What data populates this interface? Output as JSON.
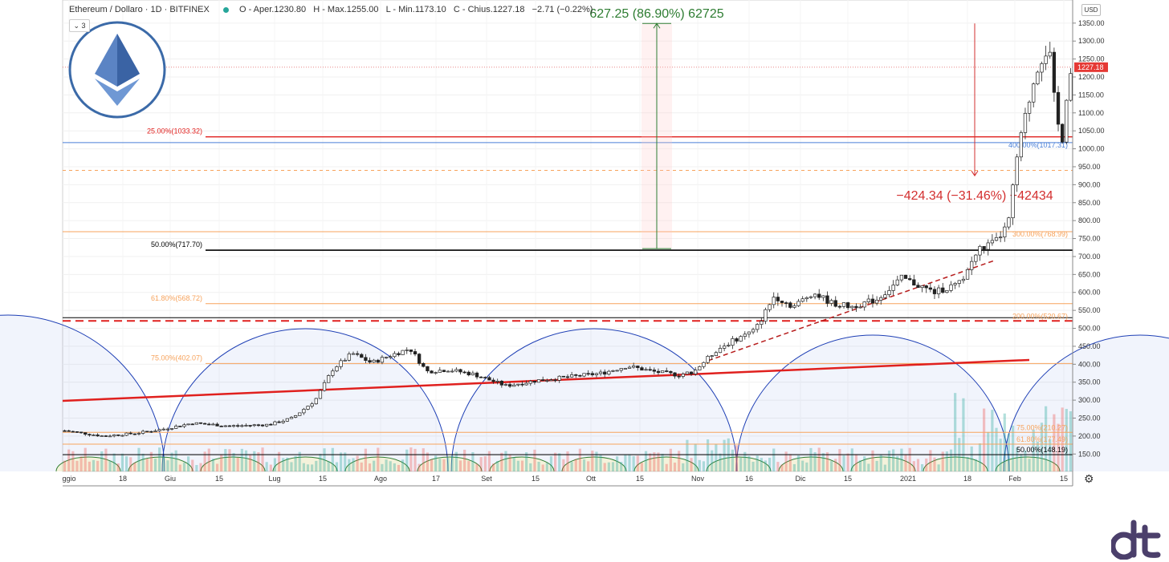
{
  "header": {
    "symbol": "Ethereum / Dollaro · 1D · BITFINEX",
    "open": "O - Aper.1230.80",
    "high": "H - Max.1255.00",
    "low": "L - Min.1173.10",
    "close": "C - Chius.1227.18",
    "change": "−2.71 (−0.22%)",
    "badge": "3"
  },
  "currency": "USD",
  "colors": {
    "up": "#26a69a",
    "down": "#ef5350",
    "fib": "#f7a35c",
    "accent_red": "#e0201e",
    "measure_up": "#2e7d32",
    "measure_down": "#d32f2f",
    "arc": "#1e3fb5"
  },
  "chart_data": {
    "type": "candlestick",
    "y_ticks": [
      "150.00",
      "200.00",
      "250.00",
      "300.00",
      "350.00",
      "400.00",
      "450.00",
      "500.00",
      "550.00",
      "600.00",
      "650.00",
      "700.00",
      "750.00",
      "800.00",
      "850.00",
      "900.00",
      "950.00",
      "1000.00",
      "1050.00",
      "1100.00",
      "1150.00",
      "1200.00",
      "1250.00",
      "1300.00",
      "1350.00"
    ],
    "x_ticks": [
      "ggio",
      "18",
      "Giu",
      "15",
      "Lug",
      "15",
      "Ago",
      "17",
      "Set",
      "15",
      "Ott",
      "15",
      "Nov",
      "16",
      "Dic",
      "15",
      "2021",
      "18",
      "Feb",
      "15"
    ],
    "last_price": "1227.18",
    "left_levels": [
      {
        "label": "25.00%(1033.32)",
        "price": 1033.32
      },
      {
        "label": "50.00%(717.70)",
        "price": 717.7
      },
      {
        "label": "61.80%(568.72)",
        "price": 568.72
      },
      {
        "label": "75.00%(402.07)",
        "price": 402.07
      }
    ],
    "right_levels": [
      {
        "label": "400.00%(1017.31)",
        "price": 1017.31
      },
      {
        "label": "300.00%(768.99)",
        "price": 768.99
      },
      {
        "label": "200.00%(520.67)",
        "price": 520.67
      },
      {
        "label": "75.00%(210.27)",
        "price": 210.27
      },
      {
        "label": "61.80%(177.49)",
        "price": 177.49
      },
      {
        "label": "50.00%(148.19)",
        "price": 148.19
      }
    ],
    "dashed_level": 940,
    "measure_up": {
      "label": "627.25 (86.90%) 62725",
      "from": 722,
      "to": 1349
    },
    "measure_down": {
      "label": "−424.34 (−31.46%) −42434",
      "from": 1349,
      "to": 925
    },
    "price_anchors": [
      [
        0,
        215
      ],
      [
        30,
        200
      ],
      [
        56,
        208
      ],
      [
        75,
        218
      ],
      [
        100,
        236
      ],
      [
        130,
        228
      ],
      [
        160,
        232
      ],
      [
        178,
        250
      ],
      [
        196,
        300
      ],
      [
        210,
        388
      ],
      [
        225,
        430
      ],
      [
        240,
        404
      ],
      [
        255,
        425
      ],
      [
        270,
        444
      ],
      [
        283,
        380
      ],
      [
        300,
        385
      ],
      [
        320,
        372
      ],
      [
        345,
        340
      ],
      [
        370,
        355
      ],
      [
        395,
        365
      ],
      [
        420,
        375
      ],
      [
        440,
        395
      ],
      [
        460,
        380
      ],
      [
        480,
        370
      ],
      [
        492,
        380
      ],
      [
        510,
        440
      ],
      [
        525,
        470
      ],
      [
        540,
        495
      ],
      [
        555,
        590
      ],
      [
        570,
        560
      ],
      [
        585,
        600
      ],
      [
        600,
        570
      ],
      [
        615,
        560
      ],
      [
        635,
        580
      ],
      [
        655,
        640
      ],
      [
        680,
        600
      ],
      [
        700,
        625
      ],
      [
        715,
        720
      ],
      [
        728,
        740
      ],
      [
        738,
        790
      ],
      [
        745,
        980
      ],
      [
        752,
        1100
      ],
      [
        760,
        1220
      ],
      [
        765,
        1260
      ],
      [
        770,
        1280
      ],
      [
        775,
        1100
      ],
      [
        780,
        1020
      ],
      [
        785,
        1200
      ],
      [
        790,
        1227
      ]
    ]
  }
}
